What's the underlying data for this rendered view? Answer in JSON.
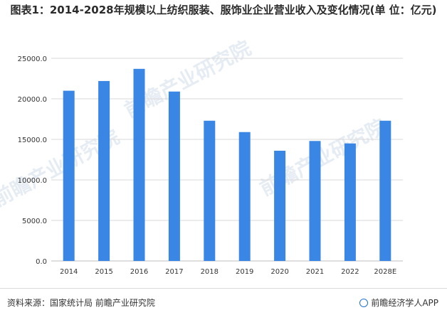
{
  "title": "图表1：2014-2028年规模以上纺织服装、服饰业企业营业收入及变化情况(单 位：亿元)",
  "watermark_text": "前瞻产业研究院",
  "footer": {
    "source": "资料来源：国家统计局 前瞻产业研究院",
    "brand": "前瞻经济学人APP",
    "brand_icon": "qianzhan-logo-icon"
  },
  "colors": {
    "bar": "#3a86e4",
    "axis": "#bfbfbf",
    "grid": "#d9d9d9"
  },
  "chart_data": {
    "type": "bar",
    "categories": [
      "2014",
      "2015",
      "2016",
      "2017",
      "2018",
      "2019",
      "2020",
      "2021",
      "2022",
      "2028E"
    ],
    "values": [
      21000,
      22200,
      23700,
      20900,
      17300,
      15900,
      13600,
      14800,
      14500,
      17300
    ],
    "ylim": [
      0,
      25000
    ],
    "yticks": [
      "0.0",
      "5000.0",
      "10000.0",
      "15000.0",
      "20000.0",
      "25000.0"
    ],
    "ytick_values": [
      0,
      5000,
      10000,
      15000,
      20000,
      25000
    ],
    "grid": true,
    "legend": "none"
  }
}
